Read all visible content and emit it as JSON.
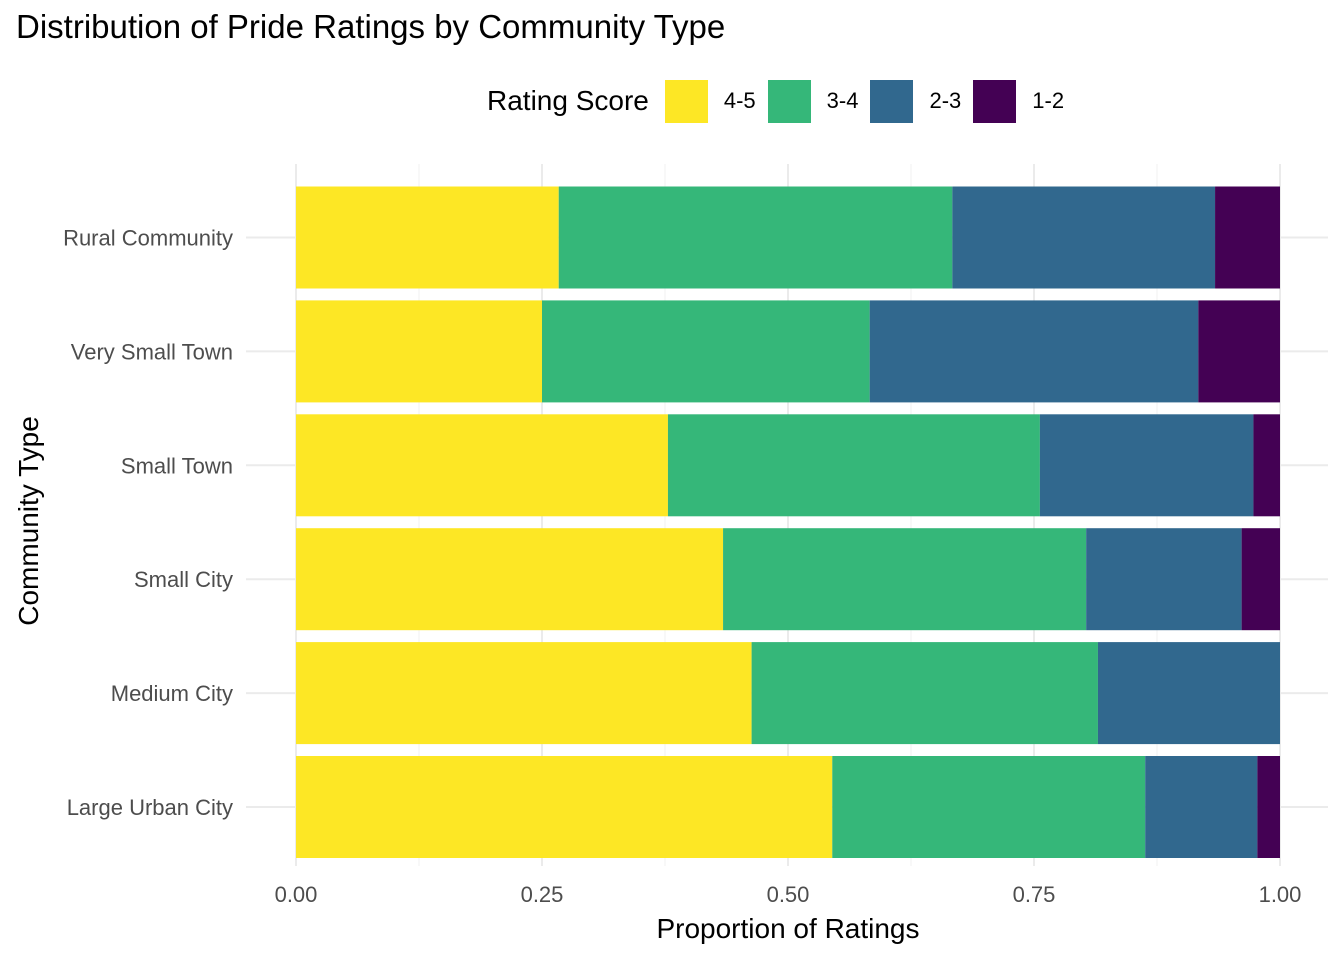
{
  "chart_data": {
    "type": "bar",
    "orientation": "horizontal",
    "stacked": true,
    "title": "Distribution of Pride Ratings by Community Type",
    "xlabel": "Proportion of Ratings",
    "ylabel": "Community Type",
    "xlim": [
      0,
      1
    ],
    "x_ticks": [
      "0.00",
      "0.25",
      "0.50",
      "0.75",
      "1.00"
    ],
    "grid": true,
    "legend": {
      "title": "Rating Score",
      "position": "top"
    },
    "categories": [
      "Rural Community",
      "Very Small Town",
      "Small Town",
      "Small City",
      "Medium City",
      "Large Urban City"
    ],
    "series": [
      {
        "name": "4-5",
        "color": "#FDE725",
        "values": [
          0.267,
          0.25,
          0.378,
          0.434,
          0.463,
          0.545
        ]
      },
      {
        "name": "3-4",
        "color": "#35B779",
        "values": [
          0.4,
          0.333,
          0.378,
          0.369,
          0.352,
          0.318
        ]
      },
      {
        "name": "2-3",
        "color": "#31688E",
        "values": [
          0.267,
          0.334,
          0.217,
          0.158,
          0.185,
          0.114
        ]
      },
      {
        "name": "1-2",
        "color": "#440154",
        "values": [
          0.066,
          0.083,
          0.027,
          0.039,
          0.0,
          0.023
        ]
      }
    ]
  }
}
